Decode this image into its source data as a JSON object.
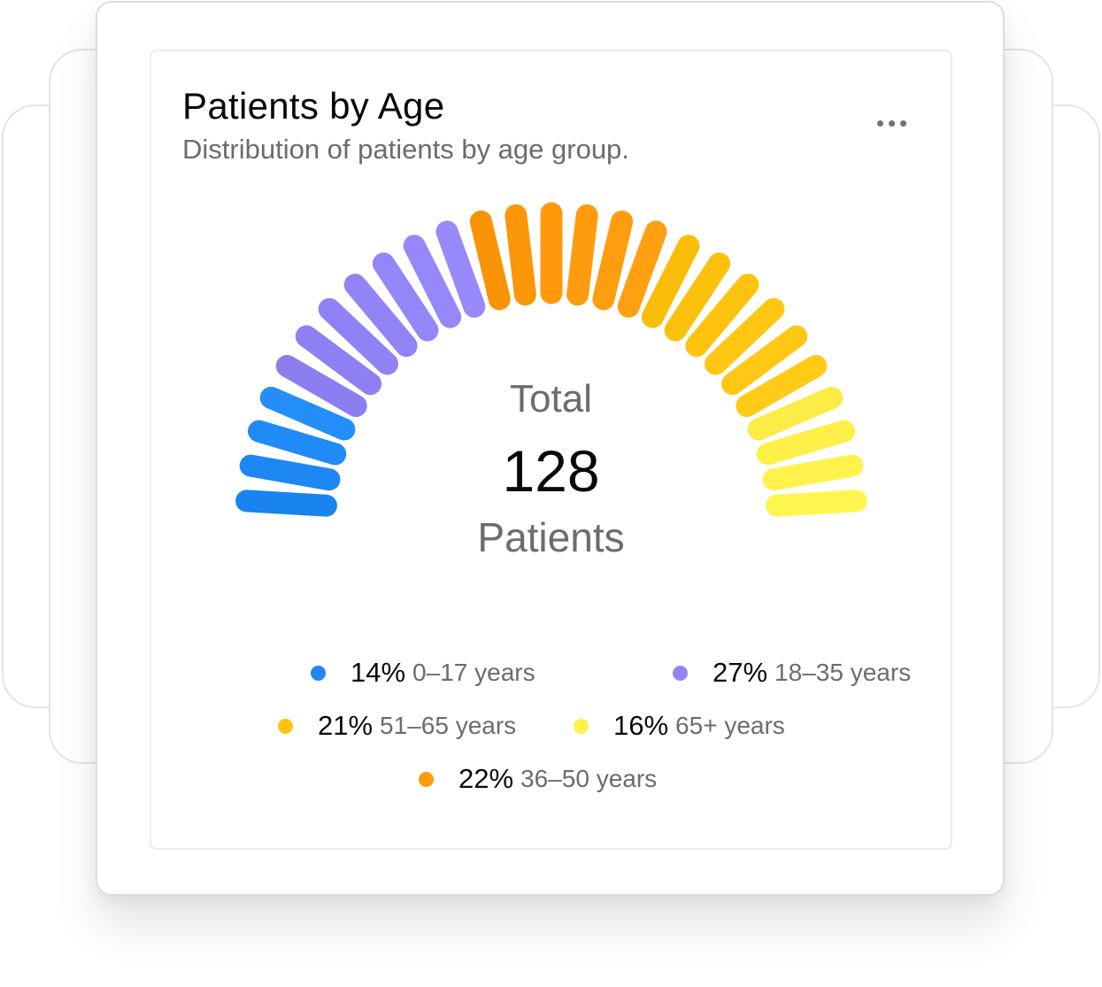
{
  "card": {
    "title": "Patients by Age",
    "subtitle": "Distribution of patients by age group.",
    "menu_icon": "more-horizontal-icon"
  },
  "summary": {
    "label": "Total",
    "value": "128",
    "unit": "Patients"
  },
  "legend": [
    {
      "pct": "14%",
      "range": "0–17 years",
      "color": "#1e88f5"
    },
    {
      "pct": "27%",
      "range": "18–35 years",
      "color": "#9283f6"
    },
    {
      "pct": "21%",
      "range": "51–65 years",
      "color": "#ffc410"
    },
    {
      "pct": "16%",
      "range": "65+ years",
      "color": "#fff04a"
    },
    {
      "pct": "22%",
      "range": "36–50 years",
      "color": "#ff9a0d"
    }
  ],
  "chart_data": {
    "type": "pie",
    "style": "semicircle segmented gauge",
    "total": 128,
    "segments": [
      {
        "label": "0–17 years",
        "value": 14,
        "color": "#1e88f5"
      },
      {
        "label": "18–35 years",
        "value": 27,
        "color": "#9283f6"
      },
      {
        "label": "36–50 years",
        "value": 22,
        "color": "#ff9a0d"
      },
      {
        "label": "51–65 years",
        "value": 21,
        "color": "#ffc410"
      },
      {
        "label": "65+ years",
        "value": 16,
        "color": "#fff04a"
      }
    ]
  }
}
